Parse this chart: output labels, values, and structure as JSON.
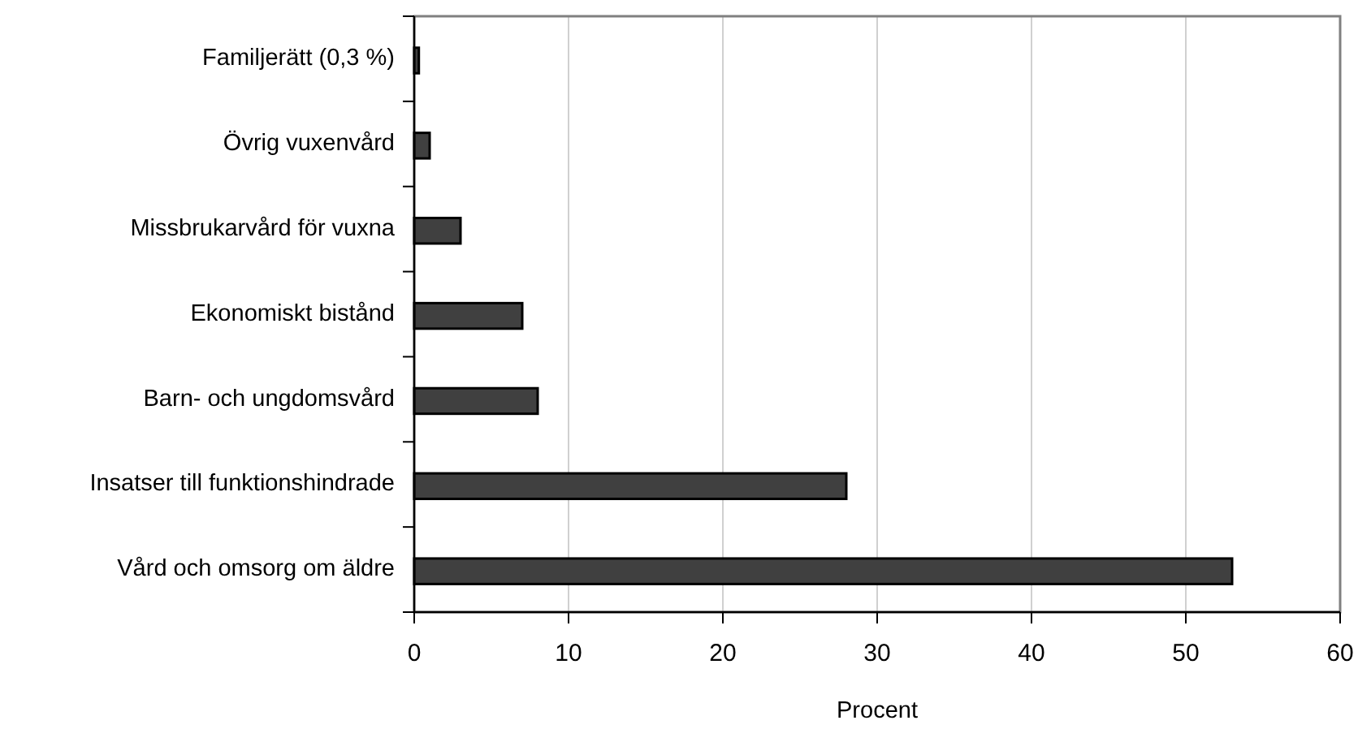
{
  "chart_data": {
    "type": "bar",
    "orientation": "horizontal",
    "xlabel": "Procent",
    "categories": [
      "Familjerätt (0,3 %)",
      "Övrig vuxenvård",
      "Missbrukarvård för vuxna",
      "Ekonomiskt bistånd",
      "Barn- och ungdomsvård",
      "Insatser till funktionshindrade",
      "Vård och omsorg om äldre"
    ],
    "values": [
      0.3,
      1,
      3,
      7,
      8,
      28,
      53
    ],
    "color": "#404040",
    "xlim": [
      0,
      60
    ],
    "xticks": [
      0,
      10,
      20,
      30,
      40,
      50,
      60
    ],
    "grid": "x"
  }
}
